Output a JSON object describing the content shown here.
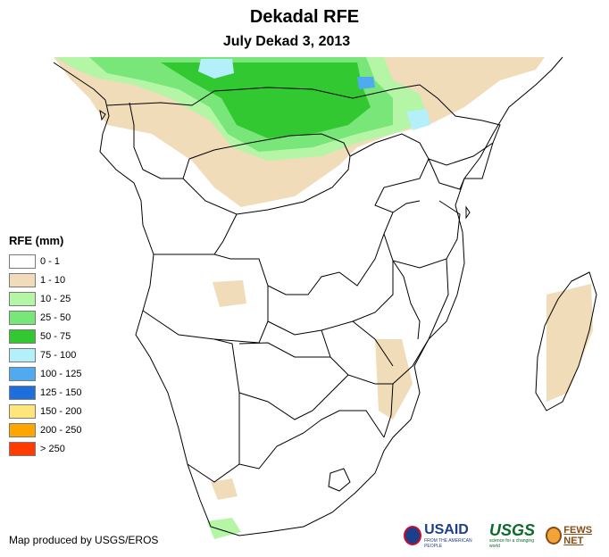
{
  "title": "Dekadal RFE",
  "subtitle": "July Dekad 3, 2013",
  "legend": {
    "title": "RFE (mm)",
    "items": [
      {
        "label": "0 - 1",
        "color": "#ffffff"
      },
      {
        "label": "1 - 10",
        "color": "#f0dcb8"
      },
      {
        "label": "10 - 25",
        "color": "#b4f5a6"
      },
      {
        "label": "25 - 50",
        "color": "#78e678"
      },
      {
        "label": "50 - 75",
        "color": "#32c832"
      },
      {
        "label": "75 - 100",
        "color": "#b4f0fa"
      },
      {
        "label": "100 - 125",
        "color": "#50aaf0"
      },
      {
        "label": "125 - 150",
        "color": "#1e6edc"
      },
      {
        "label": "150 - 200",
        "color": "#ffe67a"
      },
      {
        "label": "200 - 250",
        "color": "#ffa500"
      },
      {
        "label": "> 250",
        "color": "#ff3c00"
      }
    ]
  },
  "credit": "Map produced by USGS/EROS",
  "logos": {
    "usaid": "USAID",
    "usaid_tag": "FROM THE AMERICAN PEOPLE",
    "usgs": "USGS",
    "usgs_tag": "science for a changing world",
    "fews": "FEWS NET"
  }
}
